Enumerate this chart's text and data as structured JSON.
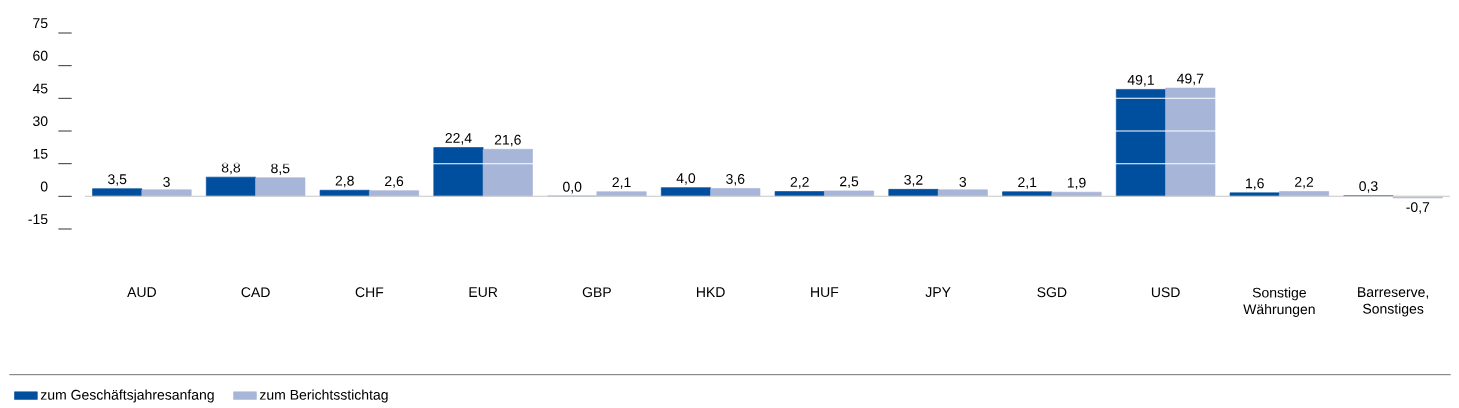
{
  "chart_data": {
    "type": "bar",
    "categories": [
      "AUD",
      "CAD",
      "CHF",
      "EUR",
      "GBP",
      "HKD",
      "HUF",
      "JPY",
      "SGD",
      "USD",
      "Sonstige Währungen",
      "Barreserve, Sonstiges"
    ],
    "series": [
      {
        "name": "zum Geschäftsjahresanfang",
        "color": "#004f9f",
        "values": [
          3.5,
          8.8,
          2.8,
          22.4,
          0.0,
          4.0,
          2.2,
          3.2,
          2.1,
          49.1,
          1.6,
          0.3
        ],
        "value_labels": [
          "3,5",
          "8,8",
          "2,8",
          "22,4",
          "0,0",
          "4,0",
          "2,2",
          "3,2",
          "2,1",
          "49,1",
          "1,6",
          "0,3"
        ]
      },
      {
        "name": "zum Berichtsstichtag",
        "color": "#a7b5d8",
        "values": [
          3,
          8.5,
          2.6,
          21.6,
          2.1,
          3.6,
          2.5,
          3,
          1.9,
          49.7,
          2.2,
          -0.7
        ],
        "value_labels": [
          "3",
          "8,5",
          "2,6",
          "21,6",
          "2,1",
          "3,6",
          "2,5",
          "3",
          "1,9",
          "49,7",
          "2,2",
          "-0,7"
        ]
      }
    ],
    "ylim": [
      -15,
      75
    ],
    "yticks": [
      -15,
      0,
      15,
      30,
      45,
      60,
      75
    ],
    "grid": "y",
    "legend": "bottom left"
  }
}
